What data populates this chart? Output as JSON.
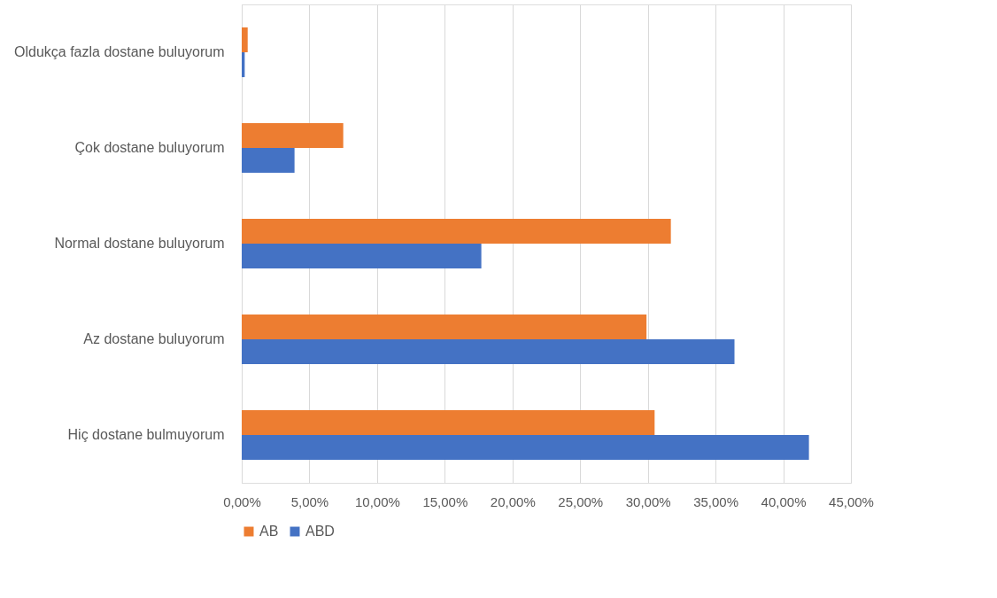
{
  "chart_data": {
    "type": "bar",
    "orientation": "horizontal",
    "categories": [
      "Oldukça fazla dostane buluyorum",
      "Çok dostane buluyorum",
      "Normal dostane buluyorum",
      "Az dostane buluyorum",
      "Hiç dostane bulmuyorum"
    ],
    "series": [
      {
        "name": "AB",
        "color": "#ed7d31",
        "values": [
          0.44,
          7.5,
          31.7,
          29.9,
          30.5
        ]
      },
      {
        "name": "ABD",
        "color": "#4472c4",
        "values": [
          0.22,
          3.9,
          17.7,
          36.4,
          41.9
        ]
      }
    ],
    "xlim": [
      0,
      45
    ],
    "xticks": [
      {
        "value": 0,
        "label": "0,00%"
      },
      {
        "value": 5,
        "label": "5,00%"
      },
      {
        "value": 10,
        "label": "10,00%"
      },
      {
        "value": 15,
        "label": "15,00%"
      },
      {
        "value": 20,
        "label": "20,00%"
      },
      {
        "value": 25,
        "label": "25,00%"
      },
      {
        "value": 30,
        "label": "30,00%"
      },
      {
        "value": 35,
        "label": "35,00%"
      },
      {
        "value": 40,
        "label": "40,00%"
      },
      {
        "value": 45,
        "label": "45,00%"
      }
    ],
    "grid": "x",
    "legend": "bottom"
  }
}
